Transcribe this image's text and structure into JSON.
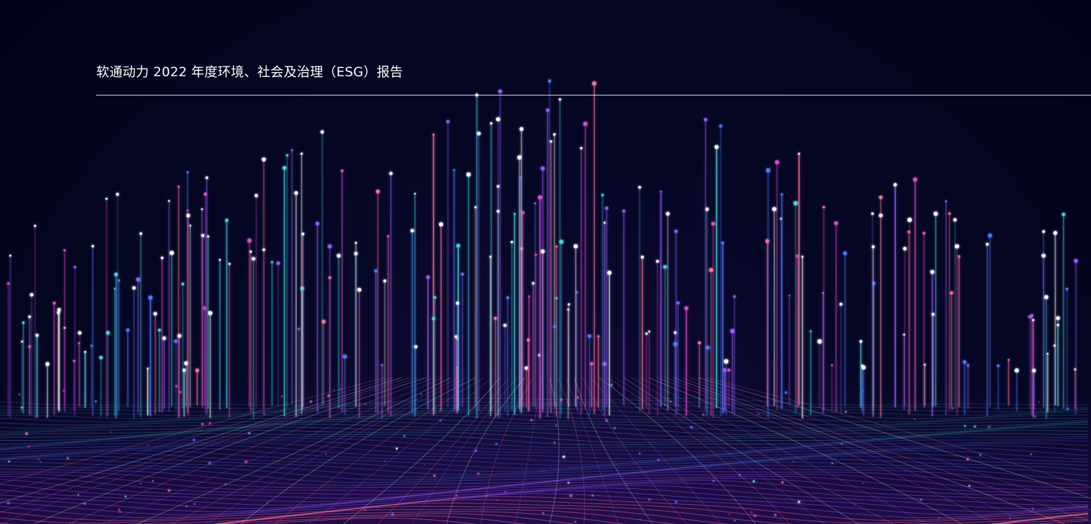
{
  "header": {
    "title": "软通动力 2022 年度环境、社会及治理（ESG）报告"
  },
  "palette": {
    "background": "#03041a",
    "cyan": "#3fd6e0",
    "blue": "#4a7bff",
    "violet": "#9a5cff",
    "magenta": "#e04bd0",
    "pink": "#ff6f9a",
    "white": "#ffffff"
  }
}
